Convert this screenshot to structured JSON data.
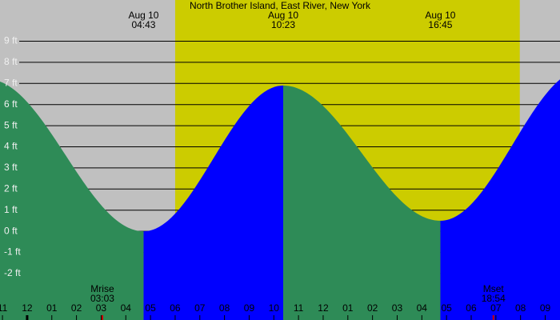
{
  "chart_data": {
    "type": "tide",
    "title": "North Brother Island, East River, New York",
    "x": [
      -1.6,
      4.72,
      10.38,
      16.75,
      22.6
    ],
    "series": [
      {
        "name": "Tide",
        "values": [
          7.2,
          0.0,
          6.9,
          0.5,
          7.7
        ]
      }
    ],
    "falling_color": "#2e8b57",
    "rising_color": "#0000ff",
    "day_color": "#cccc00",
    "night_color": "#c0c0c0",
    "daylight": [
      6.0,
      19.97
    ],
    "xlim": [
      -1.1,
      21.6
    ],
    "ylim": [
      -4.2,
      10.95
    ],
    "yticks": [
      {
        "value": 9,
        "label": "9 ft"
      },
      {
        "value": 8,
        "label": "8 ft"
      },
      {
        "value": 7,
        "label": "7 ft"
      },
      {
        "value": 6,
        "label": "6 ft"
      },
      {
        "value": 5,
        "label": "5 ft"
      },
      {
        "value": 4,
        "label": "4 ft"
      },
      {
        "value": 3,
        "label": "3 ft"
      },
      {
        "value": 2,
        "label": "2 ft"
      },
      {
        "value": 1,
        "label": "1 ft"
      },
      {
        "value": 0,
        "label": "0 ft"
      },
      {
        "value": -1,
        "label": "-1 ft"
      },
      {
        "value": -2,
        "label": "-2 ft"
      }
    ],
    "xticks": [
      {
        "value": -1,
        "label": "11"
      },
      {
        "value": 0,
        "label": "12"
      },
      {
        "value": 1,
        "label": "01"
      },
      {
        "value": 2,
        "label": "02"
      },
      {
        "value": 3,
        "label": "03"
      },
      {
        "value": 4,
        "label": "04"
      },
      {
        "value": 5,
        "label": "05"
      },
      {
        "value": 6,
        "label": "06"
      },
      {
        "value": 7,
        "label": "07"
      },
      {
        "value": 8,
        "label": "08"
      },
      {
        "value": 9,
        "label": "09"
      },
      {
        "value": 10,
        "label": "10"
      },
      {
        "value": 11,
        "label": "11"
      },
      {
        "value": 12,
        "label": "12"
      },
      {
        "value": 13,
        "label": "01"
      },
      {
        "value": 14,
        "label": "02"
      },
      {
        "value": 15,
        "label": "03"
      },
      {
        "value": 16,
        "label": "04"
      },
      {
        "value": 17,
        "label": "05"
      },
      {
        "value": 18,
        "label": "06"
      },
      {
        "value": 19,
        "label": "07"
      },
      {
        "value": 20,
        "label": "08"
      },
      {
        "value": 21,
        "label": "09"
      }
    ],
    "tide_labels": [
      {
        "date": "Aug 10",
        "time": "04:43",
        "x": 4.72
      },
      {
        "date": "Aug 10",
        "time": "10:23",
        "x": 10.38
      },
      {
        "date": "Aug 10",
        "time": "16:45",
        "x": 16.75
      }
    ],
    "moon_labels": [
      {
        "label": "Mrise",
        "time": "03:03",
        "x": 3.05
      },
      {
        "label": "Mset",
        "time": "18:54",
        "x": 18.9
      }
    ]
  }
}
